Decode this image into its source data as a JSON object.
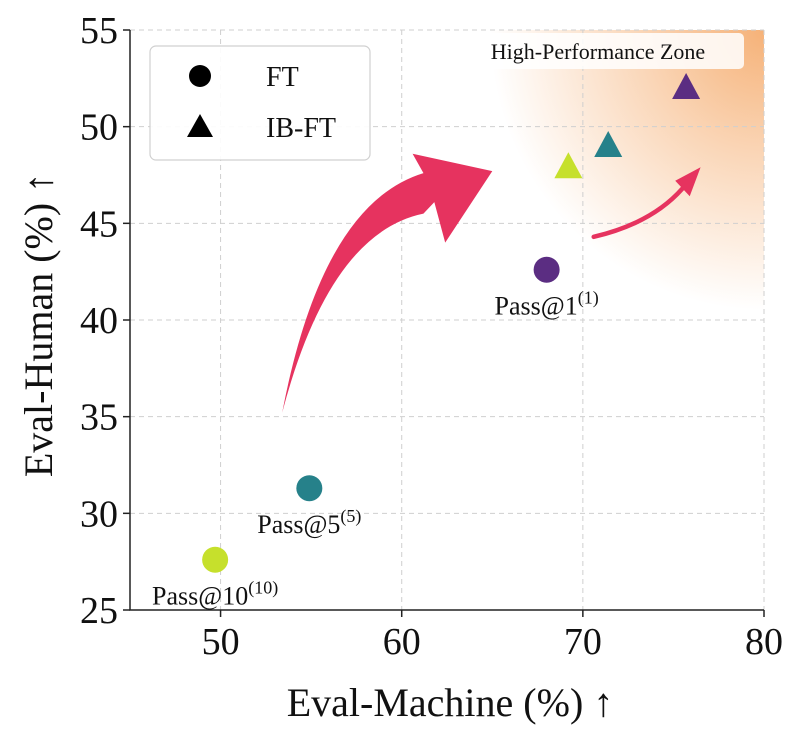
{
  "chart_data": {
    "type": "scatter",
    "xlabel": "Eval-Machine (%) ↑",
    "ylabel": "Eval-Human (%) ↑",
    "xlim": [
      45,
      80
    ],
    "ylim": [
      25,
      55
    ],
    "xticks": [
      50,
      60,
      70,
      80
    ],
    "yticks": [
      25,
      30,
      35,
      40,
      45,
      50,
      55
    ],
    "grid": true,
    "legend": {
      "placement": "top-left",
      "entries": [
        {
          "label": "FT",
          "marker": "circle"
        },
        {
          "label": "IB-FT",
          "marker": "triangle"
        }
      ]
    },
    "zone": {
      "label": "High-Performance Zone",
      "color": "#f4a460"
    },
    "series": [
      {
        "marker": "circle",
        "points": [
          {
            "x": 68.0,
            "y": 42.6,
            "color": "#5b2d82",
            "label": "Pass@1",
            "sup": "(1)"
          },
          {
            "x": 54.9,
            "y": 31.3,
            "color": "#26818a",
            "label": "Pass@5",
            "sup": "(5)"
          },
          {
            "x": 49.7,
            "y": 27.6,
            "color": "#c6e02c",
            "label": "Pass@10",
            "sup": "(10)"
          }
        ]
      },
      {
        "marker": "triangle",
        "points": [
          {
            "x": 75.7,
            "y": 52.0,
            "color": "#5b2d82"
          },
          {
            "x": 71.4,
            "y": 49.0,
            "color": "#26818a"
          },
          {
            "x": 69.2,
            "y": 47.9,
            "color": "#c6e02c"
          }
        ]
      }
    ],
    "arrow_color": "#e6335f"
  }
}
